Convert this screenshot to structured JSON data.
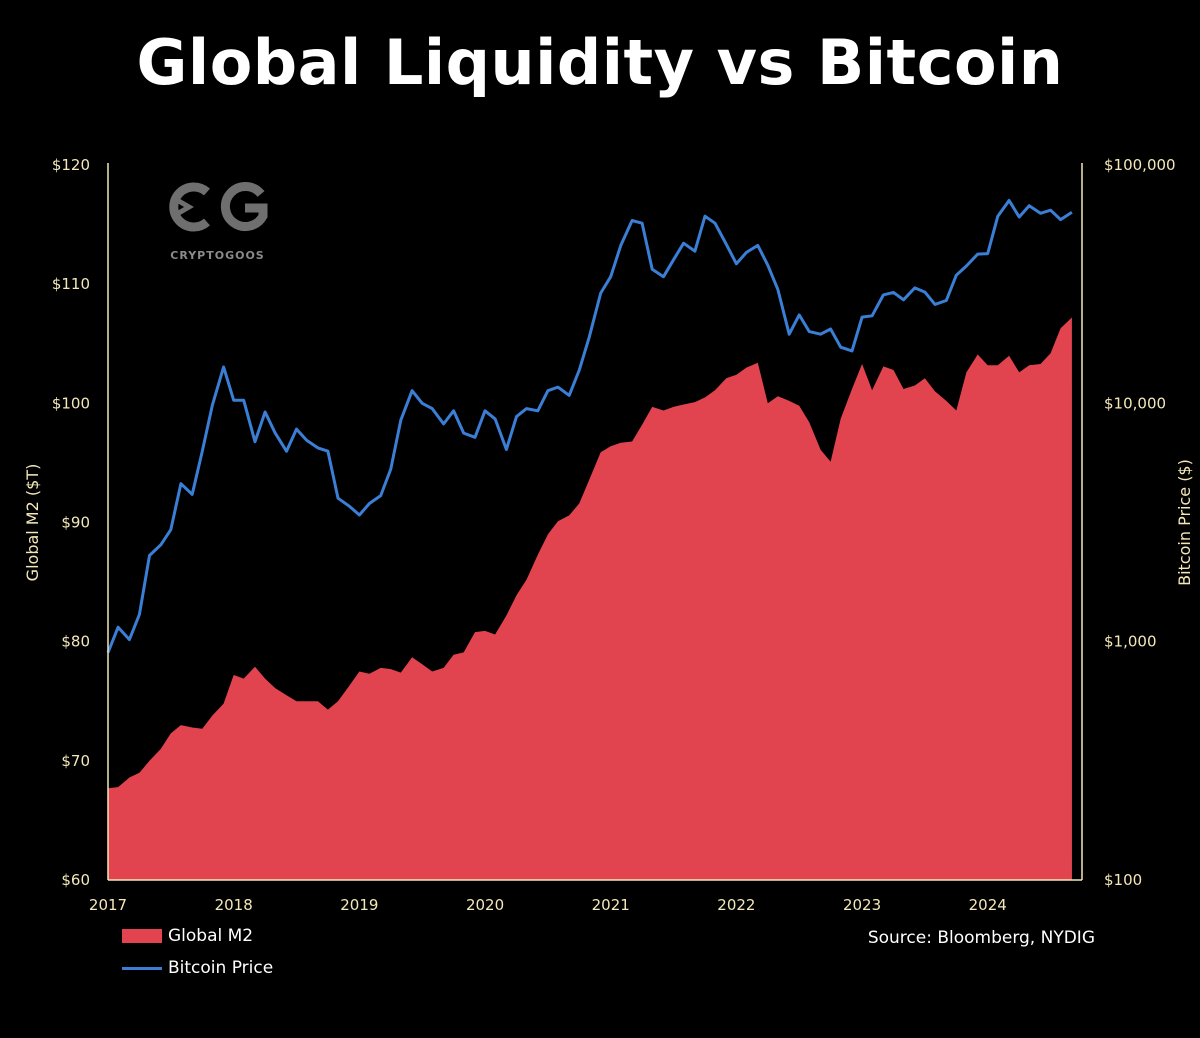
{
  "title": "Global Liquidity vs Bitcoin",
  "logo": {
    "mark": "CG",
    "text": "CRYPTOGOOS"
  },
  "source": "Source: Bloomberg, NYDIG",
  "colors": {
    "m2_fill": "#e2444f",
    "btc_line": "#3a7fd5",
    "axis": "#f3e8b8",
    "background": "#000000"
  },
  "chart_data": {
    "type": "area",
    "title": "Global Liquidity vs Bitcoin",
    "xlabel": "",
    "x_ticks": [
      "2017",
      "2018",
      "2019",
      "2020",
      "2021",
      "2022",
      "2023",
      "2024"
    ],
    "xlim": [
      2017.0,
      2024.75
    ],
    "left_axis": {
      "label": "Global M2 ($T)",
      "ticks": [
        "$60",
        "$70",
        "$80",
        "$90",
        "$100",
        "$110",
        "$120"
      ],
      "tick_values": [
        60,
        70,
        80,
        90,
        100,
        110,
        120
      ],
      "ylim": [
        60,
        120
      ]
    },
    "right_axis": {
      "label": "Bitcoin Price ($)",
      "scale": "log",
      "ticks": [
        "$100",
        "$1,000",
        "$10,000",
        "$100,000"
      ],
      "tick_values": [
        100,
        1000,
        10000,
        100000
      ],
      "ylim": [
        100,
        100000
      ]
    },
    "legend": {
      "placement": "bottom-left",
      "entries": [
        "Global M2",
        "Bitcoin Price"
      ]
    },
    "series": [
      {
        "name": "Global M2",
        "kind": "area",
        "axis": "left",
        "points": [
          [
            2017.0,
            67.7
          ],
          [
            2017.08,
            67.8
          ],
          [
            2017.17,
            68.6
          ],
          [
            2017.25,
            69.0
          ],
          [
            2017.33,
            70.0
          ],
          [
            2017.42,
            71.0
          ],
          [
            2017.5,
            72.3
          ],
          [
            2017.58,
            73.0
          ],
          [
            2017.67,
            72.8
          ],
          [
            2017.75,
            72.7
          ],
          [
            2017.83,
            73.8
          ],
          [
            2017.92,
            74.8
          ],
          [
            2018.0,
            77.2
          ],
          [
            2018.08,
            76.9
          ],
          [
            2018.17,
            77.9
          ],
          [
            2018.25,
            76.9
          ],
          [
            2018.33,
            76.1
          ],
          [
            2018.42,
            75.5
          ],
          [
            2018.5,
            75.0
          ],
          [
            2018.58,
            75.0
          ],
          [
            2018.67,
            75.0
          ],
          [
            2018.75,
            74.3
          ],
          [
            2018.83,
            75.0
          ],
          [
            2018.92,
            76.3
          ],
          [
            2019.0,
            77.5
          ],
          [
            2019.08,
            77.3
          ],
          [
            2019.17,
            77.8
          ],
          [
            2019.25,
            77.7
          ],
          [
            2019.33,
            77.4
          ],
          [
            2019.42,
            78.7
          ],
          [
            2019.5,
            78.1
          ],
          [
            2019.58,
            77.5
          ],
          [
            2019.67,
            77.8
          ],
          [
            2019.75,
            78.9
          ],
          [
            2019.83,
            79.1
          ],
          [
            2019.92,
            80.8
          ],
          [
            2020.0,
            80.9
          ],
          [
            2020.08,
            80.6
          ],
          [
            2020.17,
            82.2
          ],
          [
            2020.25,
            83.9
          ],
          [
            2020.33,
            85.2
          ],
          [
            2020.42,
            87.3
          ],
          [
            2020.5,
            89.0
          ],
          [
            2020.58,
            90.1
          ],
          [
            2020.67,
            90.6
          ],
          [
            2020.75,
            91.6
          ],
          [
            2020.83,
            93.6
          ],
          [
            2020.92,
            95.9
          ],
          [
            2021.0,
            96.4
          ],
          [
            2021.08,
            96.7
          ],
          [
            2021.17,
            96.8
          ],
          [
            2021.25,
            98.2
          ],
          [
            2021.33,
            99.7
          ],
          [
            2021.42,
            99.4
          ],
          [
            2021.5,
            99.7
          ],
          [
            2021.58,
            99.9
          ],
          [
            2021.67,
            100.1
          ],
          [
            2021.75,
            100.5
          ],
          [
            2021.83,
            101.1
          ],
          [
            2021.92,
            102.1
          ],
          [
            2022.0,
            102.4
          ],
          [
            2022.08,
            103.0
          ],
          [
            2022.17,
            103.4
          ],
          [
            2022.25,
            100.0
          ],
          [
            2022.33,
            100.6
          ],
          [
            2022.42,
            100.2
          ],
          [
            2022.5,
            99.8
          ],
          [
            2022.58,
            98.4
          ],
          [
            2022.67,
            96.1
          ],
          [
            2022.75,
            95.1
          ],
          [
            2022.83,
            98.7
          ],
          [
            2022.92,
            101.2
          ],
          [
            2023.0,
            103.3
          ],
          [
            2023.08,
            101.1
          ],
          [
            2023.17,
            103.1
          ],
          [
            2023.25,
            102.8
          ],
          [
            2023.33,
            101.2
          ],
          [
            2023.42,
            101.5
          ],
          [
            2023.5,
            102.1
          ],
          [
            2023.58,
            101.0
          ],
          [
            2023.67,
            100.2
          ],
          [
            2023.75,
            99.4
          ],
          [
            2023.83,
            102.6
          ],
          [
            2023.92,
            104.1
          ],
          [
            2024.0,
            103.2
          ],
          [
            2024.08,
            103.2
          ],
          [
            2024.17,
            104.0
          ],
          [
            2024.25,
            102.6
          ],
          [
            2024.33,
            103.2
          ],
          [
            2024.42,
            103.3
          ],
          [
            2024.5,
            104.2
          ],
          [
            2024.58,
            106.3
          ],
          [
            2024.67,
            107.2
          ]
        ]
      },
      {
        "name": "Bitcoin Price",
        "kind": "line",
        "axis": "right",
        "points": [
          [
            2017.0,
            900
          ],
          [
            2017.08,
            1150
          ],
          [
            2017.17,
            1020
          ],
          [
            2017.25,
            1300
          ],
          [
            2017.33,
            2300
          ],
          [
            2017.42,
            2550
          ],
          [
            2017.5,
            2950
          ],
          [
            2017.58,
            4600
          ],
          [
            2017.67,
            4150
          ],
          [
            2017.75,
            6300
          ],
          [
            2017.83,
            9800
          ],
          [
            2017.92,
            14200
          ],
          [
            2018.0,
            10300
          ],
          [
            2018.08,
            10300
          ],
          [
            2018.17,
            6900
          ],
          [
            2018.25,
            9200
          ],
          [
            2018.33,
            7500
          ],
          [
            2018.42,
            6300
          ],
          [
            2018.5,
            7800
          ],
          [
            2018.58,
            7000
          ],
          [
            2018.67,
            6500
          ],
          [
            2018.75,
            6300
          ],
          [
            2018.83,
            4000
          ],
          [
            2018.92,
            3700
          ],
          [
            2019.0,
            3400
          ],
          [
            2019.08,
            3800
          ],
          [
            2019.17,
            4100
          ],
          [
            2019.25,
            5300
          ],
          [
            2019.33,
            8500
          ],
          [
            2019.42,
            11300
          ],
          [
            2019.5,
            10000
          ],
          [
            2019.58,
            9500
          ],
          [
            2019.67,
            8200
          ],
          [
            2019.75,
            9300
          ],
          [
            2019.83,
            7500
          ],
          [
            2019.92,
            7200
          ],
          [
            2020.0,
            9300
          ],
          [
            2020.08,
            8600
          ],
          [
            2020.17,
            6400
          ],
          [
            2020.25,
            8800
          ],
          [
            2020.33,
            9500
          ],
          [
            2020.42,
            9300
          ],
          [
            2020.5,
            11300
          ],
          [
            2020.58,
            11700
          ],
          [
            2020.67,
            10800
          ],
          [
            2020.75,
            13800
          ],
          [
            2020.83,
            19000
          ],
          [
            2020.92,
            29000
          ],
          [
            2021.0,
            34000
          ],
          [
            2021.08,
            46000
          ],
          [
            2021.17,
            58500
          ],
          [
            2021.25,
            57000
          ],
          [
            2021.33,
            36500
          ],
          [
            2021.42,
            34000
          ],
          [
            2021.5,
            40000
          ],
          [
            2021.58,
            47000
          ],
          [
            2021.67,
            43500
          ],
          [
            2021.75,
            61000
          ],
          [
            2021.83,
            57000
          ],
          [
            2021.92,
            46500
          ],
          [
            2022.0,
            38500
          ],
          [
            2022.08,
            43000
          ],
          [
            2022.17,
            46000
          ],
          [
            2022.25,
            38000
          ],
          [
            2022.33,
            30000
          ],
          [
            2022.42,
            19500
          ],
          [
            2022.5,
            23500
          ],
          [
            2022.58,
            20000
          ],
          [
            2022.67,
            19500
          ],
          [
            2022.75,
            20500
          ],
          [
            2022.83,
            17200
          ],
          [
            2022.92,
            16600
          ],
          [
            2023.0,
            23000
          ],
          [
            2023.08,
            23300
          ],
          [
            2023.17,
            28500
          ],
          [
            2023.25,
            29200
          ],
          [
            2023.33,
            27200
          ],
          [
            2023.42,
            30500
          ],
          [
            2023.5,
            29300
          ],
          [
            2023.58,
            26000
          ],
          [
            2023.67,
            27000
          ],
          [
            2023.75,
            34500
          ],
          [
            2023.83,
            37700
          ],
          [
            2023.92,
            42300
          ],
          [
            2024.0,
            42500
          ],
          [
            2024.08,
            61000
          ],
          [
            2024.17,
            71000
          ],
          [
            2024.25,
            60500
          ],
          [
            2024.33,
            67500
          ],
          [
            2024.42,
            62700
          ],
          [
            2024.5,
            64600
          ],
          [
            2024.58,
            59000
          ],
          [
            2024.67,
            63300
          ]
        ]
      }
    ]
  }
}
